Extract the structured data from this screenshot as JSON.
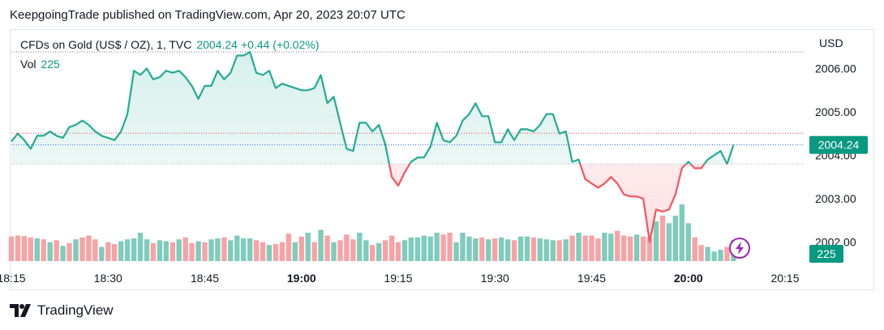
{
  "header": {
    "published_text": "KeepgoingTrade published on TradingView.com, Apr 20, 2023 20:07 UTC"
  },
  "legend": {
    "symbol": "CFDs on Gold (US$ / OZ), 1, TVC",
    "price": "2004.24",
    "change": "+0.44 (+0.02%)",
    "vol_label": "Vol",
    "vol_value": "225"
  },
  "price_axis": {
    "currency": "USD",
    "ticks": [
      "2006.00",
      "2005.00",
      "2004.00",
      "2003.00",
      "2002.00"
    ],
    "last_price_label": "2004.24",
    "last_volume_label": "225"
  },
  "time_axis": {
    "ticks": [
      "18:15",
      "18:30",
      "18:45",
      "19:00",
      "19:15",
      "19:30",
      "19:45",
      "20:00",
      "20:15"
    ],
    "bold_ticks": [
      "19:00",
      "20:00"
    ]
  },
  "footer": {
    "brand": "TradingView"
  },
  "colors": {
    "up": "#089981",
    "down": "#f23645",
    "line_up": "#22ab94",
    "line_down": "#f7525f",
    "vol_up": "#7fcbbc",
    "vol_down": "#f7a3a6",
    "accent_icon": "#9c27b0"
  },
  "chart_data": {
    "type": "line",
    "title": "CFDs on Gold (US$ / OZ), 1, TVC",
    "xlabel": "",
    "ylabel": "USD",
    "x_start": "18:15",
    "x_step_minutes": 1,
    "ylim": [
      2001.7,
      2006.45
    ],
    "baseline": 2003.8,
    "previous_close_line": 2004.51,
    "session_high_line": 2006.38,
    "grid": false,
    "series": [
      {
        "values": [
          2004.32,
          2004.5,
          2004.35,
          2004.15,
          2004.45,
          2004.45,
          2004.55,
          2004.45,
          2004.4,
          2004.65,
          2004.7,
          2004.8,
          2004.7,
          2004.55,
          2004.45,
          2004.4,
          2004.35,
          2004.55,
          2004.95,
          2005.95,
          2005.85,
          2006.0,
          2005.75,
          2005.8,
          2005.95,
          2005.9,
          2005.95,
          2005.8,
          2005.6,
          2005.3,
          2005.6,
          2005.6,
          2005.95,
          2005.75,
          2005.9,
          2006.3,
          2006.3,
          2006.38,
          2005.9,
          2005.85,
          2005.95,
          2005.55,
          2005.65,
          2005.6,
          2005.55,
          2005.5,
          2005.5,
          2005.55,
          2005.85,
          2005.2,
          2005.35,
          2004.75,
          2004.15,
          2004.1,
          2004.75,
          2004.75,
          2004.55,
          2004.7,
          2004.25,
          2003.5,
          2003.3,
          2003.6,
          2003.85,
          2003.95,
          2003.95,
          2004.2,
          2004.75,
          2004.35,
          2004.3,
          2004.45,
          2004.8,
          2004.95,
          2005.2,
          2004.9,
          2004.9,
          2004.3,
          2004.3,
          2004.6,
          2004.35,
          2004.6,
          2004.6,
          2004.55,
          2004.7,
          2004.95,
          2004.95,
          2004.5,
          2004.55,
          2003.85,
          2003.9,
          2003.45,
          2003.35,
          2003.25,
          2003.35,
          2003.5,
          2003.35,
          2003.1,
          2003.05,
          2003.05,
          2003.0,
          2002.0,
          2002.75,
          2002.7,
          2002.75,
          2003.1,
          2003.7,
          2003.85,
          2003.7,
          2003.7,
          2003.9,
          2004.0,
          2004.1,
          2003.8,
          2004.24
        ]
      }
    ],
    "volume": {
      "values": [
        260,
        270,
        265,
        250,
        240,
        230,
        200,
        220,
        160,
        190,
        230,
        250,
        270,
        230,
        150,
        200,
        180,
        210,
        230,
        240,
        300,
        230,
        190,
        220,
        210,
        200,
        230,
        250,
        190,
        210,
        200,
        230,
        240,
        250,
        220,
        270,
        240,
        240,
        220,
        200,
        170,
        180,
        200,
        290,
        200,
        260,
        300,
        200,
        330,
        270,
        200,
        220,
        280,
        230,
        300,
        220,
        170,
        190,
        220,
        270,
        200,
        220,
        250,
        250,
        270,
        260,
        300,
        280,
        300,
        200,
        300,
        260,
        240,
        250,
        230,
        240,
        250,
        230,
        220,
        260,
        260,
        250,
        240,
        230,
        220,
        220,
        230,
        270,
        300,
        270,
        270,
        240,
        300,
        290,
        320,
        270,
        260,
        280,
        260,
        250,
        420,
        480,
        400,
        480,
        600,
        400,
        250,
        170,
        150,
        100,
        120,
        150,
        225
      ],
      "up_flags": [
        0,
        0,
        0,
        0,
        1,
        0,
        1,
        0,
        1,
        0,
        1,
        0,
        0,
        0,
        1,
        0,
        0,
        1,
        1,
        1,
        1,
        1,
        0,
        1,
        1,
        0,
        1,
        0,
        0,
        1,
        0,
        1,
        1,
        0,
        1,
        1,
        1,
        1,
        0,
        0,
        1,
        0,
        0,
        0,
        1,
        0,
        1,
        0,
        1,
        0,
        1,
        0,
        0,
        0,
        1,
        1,
        0,
        1,
        0,
        0,
        0,
        1,
        1,
        1,
        1,
        1,
        1,
        0,
        0,
        1,
        1,
        1,
        1,
        0,
        1,
        0,
        1,
        1,
        0,
        1,
        1,
        0,
        1,
        1,
        1,
        0,
        1,
        0,
        1,
        0,
        0,
        0,
        1,
        1,
        0,
        0,
        0,
        1,
        0,
        0,
        1,
        0,
        1,
        1,
        1,
        1,
        0,
        0,
        1,
        1,
        1,
        0,
        1
      ]
    }
  }
}
